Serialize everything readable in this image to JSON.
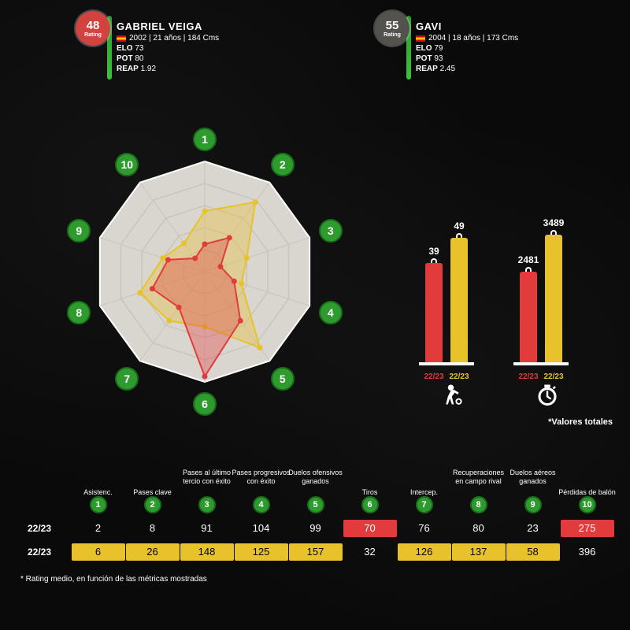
{
  "colors": {
    "player_a": "#e13b3b",
    "player_b": "#e8c22a",
    "green": "#2e9b2e",
    "green_dark": "#1a6b1a",
    "badge_a_bg": "#d2433f",
    "badge_b_bg": "#53524c",
    "radar_bg": "#d9d5cf",
    "radar_ring": "#c9c4bd"
  },
  "players": {
    "a": {
      "rating": "48",
      "rating_label": "Rating",
      "name": "GABRIEL VEIGA",
      "info": "2002 | 21 años | 184 Cms",
      "elo_label": "ELO",
      "elo": "73",
      "pot_label": "POT",
      "pot": "80",
      "reap_label": "REAP",
      "reap": "1.92"
    },
    "b": {
      "rating": "55",
      "rating_label": "Rating",
      "name": "GAVI",
      "info": "2004 | 18 años | 173 Cms",
      "elo_label": "ELO",
      "elo": "79",
      "pot_label": "POT",
      "pot": "93",
      "reap_label": "REAP",
      "reap": "2.45"
    }
  },
  "radar": {
    "type": "radar",
    "n_axes": 10,
    "rings": 5,
    "max": 1.0,
    "series_a": [
      0.25,
      0.38,
      0.15,
      0.28,
      0.55,
      0.95,
      0.4,
      0.5,
      0.35,
      0.15
    ],
    "series_b": [
      0.55,
      0.78,
      0.4,
      0.35,
      0.85,
      0.5,
      0.55,
      0.62,
      0.4,
      0.32
    ],
    "fill_opacity": 0.35,
    "line_width": 2
  },
  "bars": {
    "group1": {
      "a": {
        "value": "39",
        "height_frac": 0.7,
        "season": "22/23"
      },
      "b": {
        "value": "49",
        "height_frac": 0.88,
        "season": "22/23"
      },
      "icon": "player"
    },
    "group2": {
      "a": {
        "value": "2481",
        "height_frac": 0.64,
        "season": "22/23"
      },
      "b": {
        "value": "3489",
        "height_frac": 0.9,
        "season": "22/23"
      },
      "icon": "clock"
    }
  },
  "valores_totales": "*Valores totales",
  "table": {
    "headers": [
      "Asistenc.",
      "Pases clave",
      "Pases al último tercio con éxito",
      "Pases progresivos con éxito",
      "Duelos ofensivos ganados",
      "Tiros",
      "Intercep.",
      "Recuperaciones en campo rival",
      "Duelos aéreos ganados",
      "Pérdidas de balón"
    ],
    "row_label": "22/23",
    "row_a": {
      "values": [
        "2",
        "8",
        "91",
        "104",
        "99",
        "70",
        "76",
        "80",
        "23",
        "275"
      ],
      "highlight_idx": [
        5,
        9
      ],
      "highlight_color": "#e13b3b"
    },
    "row_b": {
      "values": [
        "6",
        "26",
        "148",
        "125",
        "157",
        "32",
        "126",
        "137",
        "58",
        "396"
      ],
      "highlight_idx": [
        0,
        1,
        2,
        3,
        4,
        6,
        7,
        8
      ],
      "highlight_color": "#e8c22a"
    }
  },
  "footnote": "* Rating medio, en función de las métricas mostradas"
}
